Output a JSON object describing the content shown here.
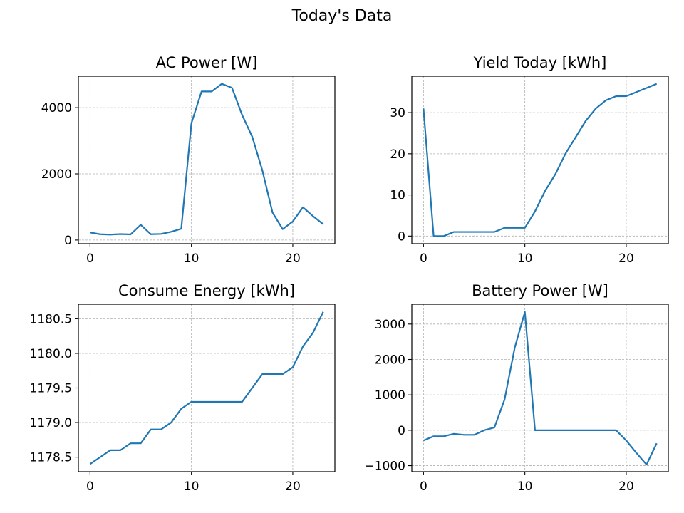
{
  "figure": {
    "title": "Today's Data"
  },
  "chart_data": [
    {
      "type": "line",
      "title": "AC Power [W]",
      "xlabel": "",
      "ylabel": "",
      "xlim": [
        -1.15,
        24.15
      ],
      "ylim": [
        -110,
        4950
      ],
      "xticks": [
        0,
        10,
        20
      ],
      "xtick_labels": [
        "0",
        "10",
        "20"
      ],
      "yticks": [
        0,
        2000,
        4000
      ],
      "ytick_labels": [
        "0",
        "2000",
        "4000"
      ],
      "grid": true,
      "color": "#1f77b4",
      "x": [
        0,
        1,
        2,
        3,
        4,
        5,
        6,
        7,
        8,
        9,
        10,
        11,
        12,
        13,
        14,
        15,
        16,
        17,
        18,
        19,
        20,
        21,
        22,
        23
      ],
      "y": [
        230,
        175,
        165,
        180,
        170,
        460,
        175,
        185,
        250,
        340,
        3530,
        4490,
        4490,
        4720,
        4600,
        3780,
        3120,
        2100,
        830,
        330,
        560,
        990,
        720,
        480
      ]
    },
    {
      "type": "line",
      "title": "Yield Today [kWh]",
      "xlabel": "",
      "ylabel": "",
      "xlim": [
        -1.15,
        24.15
      ],
      "ylim": [
        -1.85,
        38.85
      ],
      "xticks": [
        0,
        10,
        20
      ],
      "xtick_labels": [
        "0",
        "10",
        "20"
      ],
      "yticks": [
        0,
        10,
        20,
        30
      ],
      "ytick_labels": [
        "0",
        "10",
        "20",
        "30"
      ],
      "grid": true,
      "color": "#1f77b4",
      "x": [
        0,
        1,
        2,
        3,
        4,
        5,
        6,
        7,
        8,
        9,
        10,
        11,
        12,
        13,
        14,
        15,
        16,
        17,
        18,
        19,
        20,
        21,
        22,
        23
      ],
      "y": [
        31,
        0,
        0,
        1,
        1,
        1,
        1,
        1,
        2,
        2,
        2,
        6,
        11,
        15,
        20,
        24,
        28,
        31,
        33,
        34,
        34,
        35,
        36,
        37
      ]
    },
    {
      "type": "line",
      "title": "Consume Energy [kWh]",
      "xlabel": "",
      "ylabel": "",
      "xlim": [
        -1.15,
        24.15
      ],
      "ylim": [
        1178.29,
        1180.71
      ],
      "xticks": [
        0,
        10,
        20
      ],
      "xtick_labels": [
        "0",
        "10",
        "20"
      ],
      "yticks": [
        1178.5,
        1179.0,
        1179.5,
        1180.0,
        1180.5
      ],
      "ytick_labels": [
        "1178.5",
        "1179.0",
        "1179.5",
        "1180.0",
        "1180.5"
      ],
      "grid": true,
      "color": "#1f77b4",
      "x": [
        0,
        1,
        2,
        3,
        4,
        5,
        6,
        7,
        8,
        9,
        10,
        11,
        12,
        13,
        14,
        15,
        16,
        17,
        18,
        19,
        20,
        21,
        22,
        23
      ],
      "y": [
        1178.4,
        1178.5,
        1178.6,
        1178.6,
        1178.7,
        1178.7,
        1178.9,
        1178.9,
        1179.0,
        1179.2,
        1179.3,
        1179.3,
        1179.3,
        1179.3,
        1179.3,
        1179.3,
        1179.5,
        1179.7,
        1179.7,
        1179.7,
        1179.8,
        1180.1,
        1180.3,
        1180.6
      ]
    },
    {
      "type": "line",
      "title": "Battery Power [W]",
      "xlabel": "",
      "ylabel": "",
      "xlim": [
        -1.15,
        24.15
      ],
      "ylim": [
        -1170,
        3560
      ],
      "xticks": [
        0,
        10,
        20
      ],
      "xtick_labels": [
        "0",
        "10",
        "20"
      ],
      "yticks": [
        -1000,
        0,
        1000,
        2000,
        3000
      ],
      "ytick_labels": [
        "−1000",
        "0",
        "1000",
        "2000",
        "3000"
      ],
      "grid": true,
      "color": "#1f77b4",
      "x": [
        0,
        1,
        2,
        3,
        4,
        5,
        6,
        7,
        8,
        9,
        10,
        11,
        12,
        13,
        14,
        15,
        16,
        17,
        18,
        19,
        20,
        21,
        22,
        23
      ],
      "y": [
        -290,
        -170,
        -170,
        -100,
        -130,
        -130,
        0,
        80,
        870,
        2330,
        3340,
        0,
        0,
        0,
        0,
        0,
        0,
        0,
        0,
        0,
        -290,
        -640,
        -970,
        -370
      ]
    }
  ]
}
